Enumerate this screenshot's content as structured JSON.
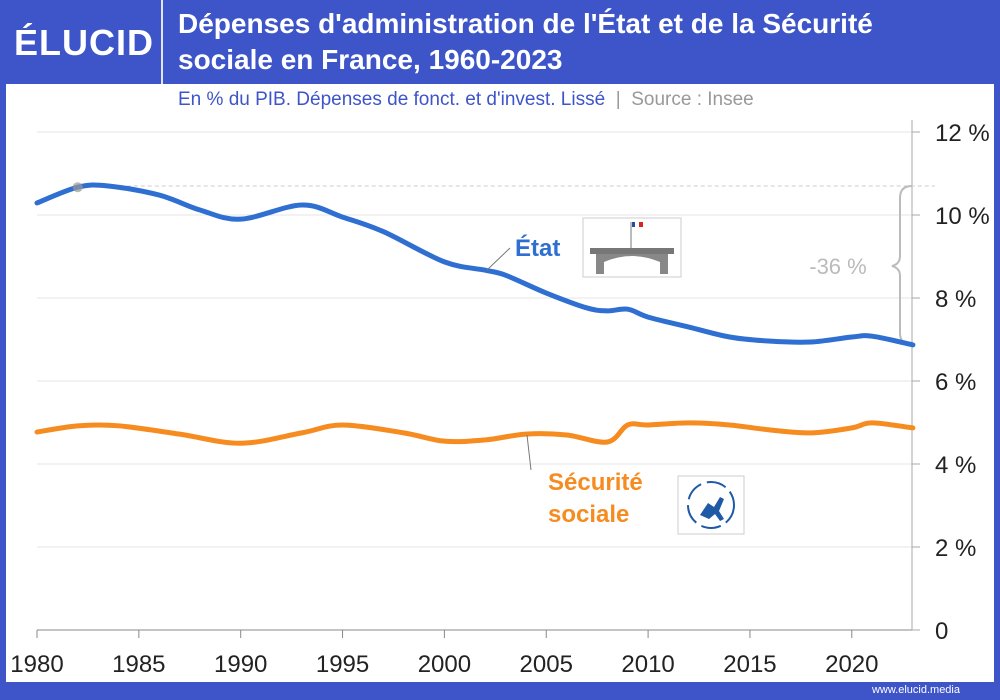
{
  "brand": {
    "logo": "ÉLUCID",
    "footer": "www.elucid.media",
    "color": "#3d55c9"
  },
  "chart_data": {
    "type": "line",
    "title": "Dépenses d'administration de l'État et de la Sécurité sociale en France, 1960-2023",
    "subtitle": "En % du PIB. Dépenses de fonct. et d'invest. Lissé",
    "source": "Source : Insee",
    "xlim": [
      1980,
      2023
    ],
    "ylim": [
      0,
      12
    ],
    "x_ticks": [
      "1980",
      "1985",
      "1990",
      "1995",
      "2000",
      "2005",
      "2010",
      "2015",
      "2020"
    ],
    "y_ticks": [
      "0",
      "2 %",
      "4 %",
      "6 %",
      "8 %",
      "10 %",
      "12 %"
    ],
    "grid": true,
    "annotation": "-36 %",
    "series": [
      {
        "name": "État",
        "color": "#2f6fd1",
        "icon": "building-flag-icon",
        "x": [
          1980,
          1982,
          1983.5,
          1986,
          1988,
          1990,
          1993,
          1995,
          1997,
          2000,
          2002,
          2003,
          2005,
          2007,
          2008,
          2009,
          2010,
          2012,
          2014,
          2016,
          2018,
          2020,
          2021,
          2023
        ],
        "y": [
          10.29,
          10.67,
          10.7,
          10.48,
          10.12,
          9.9,
          10.24,
          9.95,
          9.6,
          8.87,
          8.67,
          8.55,
          8.12,
          7.76,
          7.69,
          7.73,
          7.54,
          7.3,
          7.06,
          6.96,
          6.94,
          7.06,
          7.08,
          6.87
        ]
      },
      {
        "name": "Sécurité sociale",
        "label_lines": [
          "Sécurité",
          "sociale"
        ],
        "color": "#f68b1f",
        "icon": "securite-sociale-logo-icon",
        "x": [
          1980,
          1982,
          1984,
          1987,
          1990,
          1993,
          1995,
          1998,
          2000,
          2002,
          2004,
          2006,
          2008,
          2009,
          2010,
          2012,
          2014,
          2016,
          2018,
          2020,
          2021,
          2023
        ],
        "y": [
          4.77,
          4.92,
          4.92,
          4.72,
          4.5,
          4.75,
          4.94,
          4.75,
          4.55,
          4.58,
          4.72,
          4.7,
          4.53,
          4.94,
          4.94,
          4.99,
          4.94,
          4.82,
          4.75,
          4.87,
          4.99,
          4.87
        ]
      }
    ]
  }
}
